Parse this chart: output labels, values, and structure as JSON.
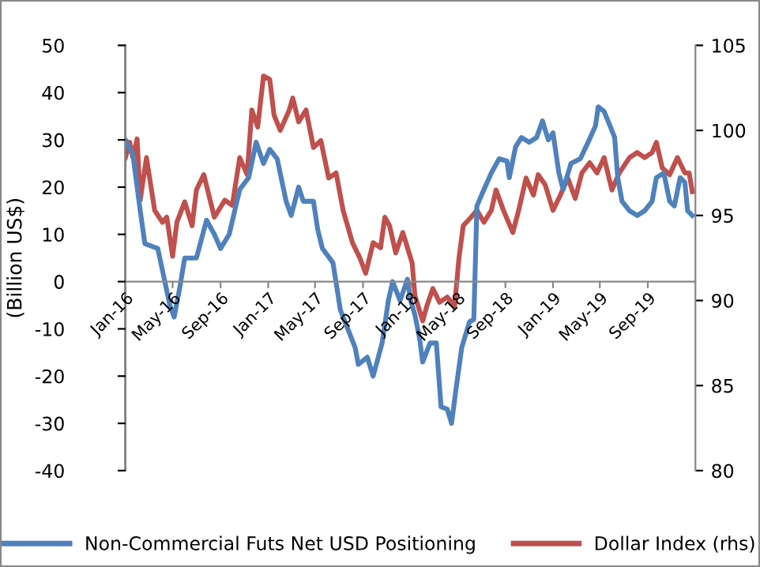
{
  "chart_data": {
    "type": "line",
    "ylabel": "(Billion US$)",
    "legend": "bottom",
    "grid": false,
    "line_style": "solid",
    "marker": "none",
    "xlim": [
      "2016-01-01",
      "2020-01-01"
    ],
    "xticks": [
      {
        "value": "2016-01-01",
        "label": "Jan-16"
      },
      {
        "value": "2016-05-01",
        "label": "May-16"
      },
      {
        "value": "2016-09-01",
        "label": "Sep-16"
      },
      {
        "value": "2017-01-01",
        "label": "Jan-17"
      },
      {
        "value": "2017-05-01",
        "label": "May-17"
      },
      {
        "value": "2017-09-01",
        "label": "Sep-17"
      },
      {
        "value": "2018-01-01",
        "label": "Jan-18"
      },
      {
        "value": "2018-05-01",
        "label": "May-18"
      },
      {
        "value": "2018-09-01",
        "label": "Sep-18"
      },
      {
        "value": "2019-01-01",
        "label": "Jan-19"
      },
      {
        "value": "2019-05-01",
        "label": "May-19"
      },
      {
        "value": "2019-09-01",
        "label": "Sep-19"
      }
    ],
    "ylim": [
      -40,
      50
    ],
    "yticks": [
      -40,
      -30,
      -20,
      -10,
      0,
      10,
      20,
      30,
      40,
      50
    ],
    "y2lim": [
      80,
      105
    ],
    "y2ticks": [
      80,
      85,
      90,
      95,
      100,
      105
    ],
    "series": [
      {
        "name": "Non-Commercial Futs Net USD Positioning",
        "color": "#4f81bd",
        "x": [
          "2016-01-01",
          "2016-01-20",
          "2016-02-08",
          "2016-02-20",
          "2016-03-24",
          "2016-04-24",
          "2016-05-05",
          "2016-05-20",
          "2016-06-01",
          "2016-07-01",
          "2016-07-27",
          "2016-08-16",
          "2016-09-01",
          "2016-09-23",
          "2016-10-20",
          "2016-11-12",
          "2016-12-01",
          "2016-12-20",
          "2017-01-05",
          "2017-01-24",
          "2017-02-16",
          "2017-03-01",
          "2017-03-20",
          "2017-04-01",
          "2017-04-27",
          "2017-05-08",
          "2017-05-20",
          "2017-06-16",
          "2017-07-05",
          "2017-07-24",
          "2017-08-12",
          "2017-08-20",
          "2017-09-12",
          "2017-09-27",
          "2017-10-20",
          "2017-11-05",
          "2017-11-16",
          "2017-12-05",
          "2017-12-24",
          "2018-01-01",
          "2018-01-12",
          "2018-01-24",
          "2018-02-01",
          "2018-02-20",
          "2018-03-08",
          "2018-03-20",
          "2018-04-05",
          "2018-04-16",
          "2018-04-27",
          "2018-05-12",
          "2018-06-01",
          "2018-06-12",
          "2018-06-20",
          "2018-07-08",
          "2018-07-27",
          "2018-08-16",
          "2018-09-05",
          "2018-09-11",
          "2018-09-27",
          "2018-10-12",
          "2018-11-01",
          "2018-11-20",
          "2018-12-05",
          "2018-12-20",
          "2019-01-01",
          "2019-01-16",
          "2019-01-27",
          "2019-02-16",
          "2019-03-12",
          "2019-04-01",
          "2019-04-20",
          "2019-04-27",
          "2019-05-12",
          "2019-05-27",
          "2019-06-08",
          "2019-06-16",
          "2019-06-27",
          "2019-07-16",
          "2019-08-05",
          "2019-08-24",
          "2019-09-12",
          "2019-09-23",
          "2019-10-12",
          "2019-10-27",
          "2019-11-08",
          "2019-11-23",
          "2019-12-05",
          "2019-12-12",
          "2019-12-24"
        ],
        "values": [
          30,
          27,
          15,
          8,
          7,
          -5,
          -7.5,
          -1,
          5,
          5,
          13,
          10,
          7,
          10,
          19.5,
          22,
          29.5,
          25,
          28,
          26,
          17,
          14,
          20,
          17,
          17,
          11,
          7,
          4,
          -6,
          -10,
          -14,
          -17.5,
          -16,
          -20,
          -13,
          -4,
          0,
          -4,
          0.5,
          -4,
          -7,
          -12,
          -17,
          -13,
          -13,
          -26.5,
          -27,
          -30,
          -23,
          -14,
          -8.5,
          -8,
          16,
          19.5,
          23,
          26,
          25.5,
          22,
          28.5,
          30.5,
          29.5,
          30.5,
          34,
          30,
          31.5,
          23,
          19.5,
          25,
          26,
          29.5,
          33,
          37,
          36,
          33,
          30.5,
          22,
          17,
          15,
          14,
          15,
          17,
          22,
          23,
          17,
          16,
          22,
          21,
          15,
          14
        ]
      },
      {
        "name": "Dollar Index (rhs)",
        "color": "#c0504d",
        "axis": "y2",
        "x": [
          "2016-01-01",
          "2016-01-12",
          "2016-01-20",
          "2016-01-31",
          "2016-02-08",
          "2016-02-24",
          "2016-03-16",
          "2016-04-05",
          "2016-04-16",
          "2016-05-01",
          "2016-05-12",
          "2016-06-01",
          "2016-06-20",
          "2016-07-01",
          "2016-07-20",
          "2016-08-16",
          "2016-09-12",
          "2016-10-01",
          "2016-10-20",
          "2016-11-08",
          "2016-11-20",
          "2016-12-05",
          "2016-12-20",
          "2017-01-05",
          "2017-01-16",
          "2017-02-01",
          "2017-02-24",
          "2017-03-05",
          "2017-03-20",
          "2017-04-08",
          "2017-04-27",
          "2017-05-16",
          "2017-06-05",
          "2017-06-24",
          "2017-07-12",
          "2017-08-05",
          "2017-08-24",
          "2017-09-08",
          "2017-09-27",
          "2017-10-16",
          "2017-10-27",
          "2017-11-08",
          "2017-11-24",
          "2017-12-12",
          "2017-12-24",
          "2018-01-05",
          "2018-01-12",
          "2018-02-01",
          "2018-02-12",
          "2018-02-27",
          "2018-03-16",
          "2018-04-05",
          "2018-04-24",
          "2018-05-05",
          "2018-05-16",
          "2018-06-05",
          "2018-06-20",
          "2018-07-08",
          "2018-07-27",
          "2018-08-08",
          "2018-08-27",
          "2018-09-20",
          "2018-10-05",
          "2018-10-24",
          "2018-11-12",
          "2018-11-24",
          "2018-12-12",
          "2019-01-01",
          "2019-01-20",
          "2019-02-08",
          "2019-02-27",
          "2019-03-16",
          "2019-04-05",
          "2019-04-24",
          "2019-05-12",
          "2019-06-01",
          "2019-06-20",
          "2019-07-16",
          "2019-08-05",
          "2019-08-24",
          "2019-09-12",
          "2019-09-23",
          "2019-10-08",
          "2019-10-27",
          "2019-11-16",
          "2019-12-05",
          "2019-12-16",
          "2019-12-24"
        ],
        "values": [
          98.4,
          99.3,
          98.4,
          99.5,
          95.9,
          98.4,
          95.3,
          94.6,
          94.9,
          92.6,
          94.6,
          95.8,
          94.4,
          96.5,
          97.4,
          94.9,
          95.9,
          95.6,
          98.4,
          97.4,
          101.2,
          100.2,
          103.2,
          103,
          100.9,
          100,
          101.2,
          101.9,
          100.5,
          101.2,
          99,
          99.4,
          97.2,
          97.5,
          95.3,
          93.4,
          92.5,
          91.6,
          93.4,
          93.1,
          94.9,
          94.4,
          92.8,
          94,
          93.1,
          92.2,
          90.3,
          88.8,
          89.7,
          90.7,
          89.9,
          90.2,
          89.7,
          92.5,
          94.4,
          94.9,
          95.3,
          94.6,
          95.3,
          96.5,
          95.3,
          94,
          95.3,
          97.2,
          96.2,
          97.4,
          96.8,
          95.3,
          96.2,
          97.2,
          96,
          97.5,
          98.1,
          97.5,
          98.4,
          96.5,
          97.5,
          98.4,
          98.7,
          98.4,
          98.7,
          99.3,
          97.8,
          97.4,
          98.4,
          97.5,
          97.5,
          96.4
        ]
      }
    ]
  }
}
